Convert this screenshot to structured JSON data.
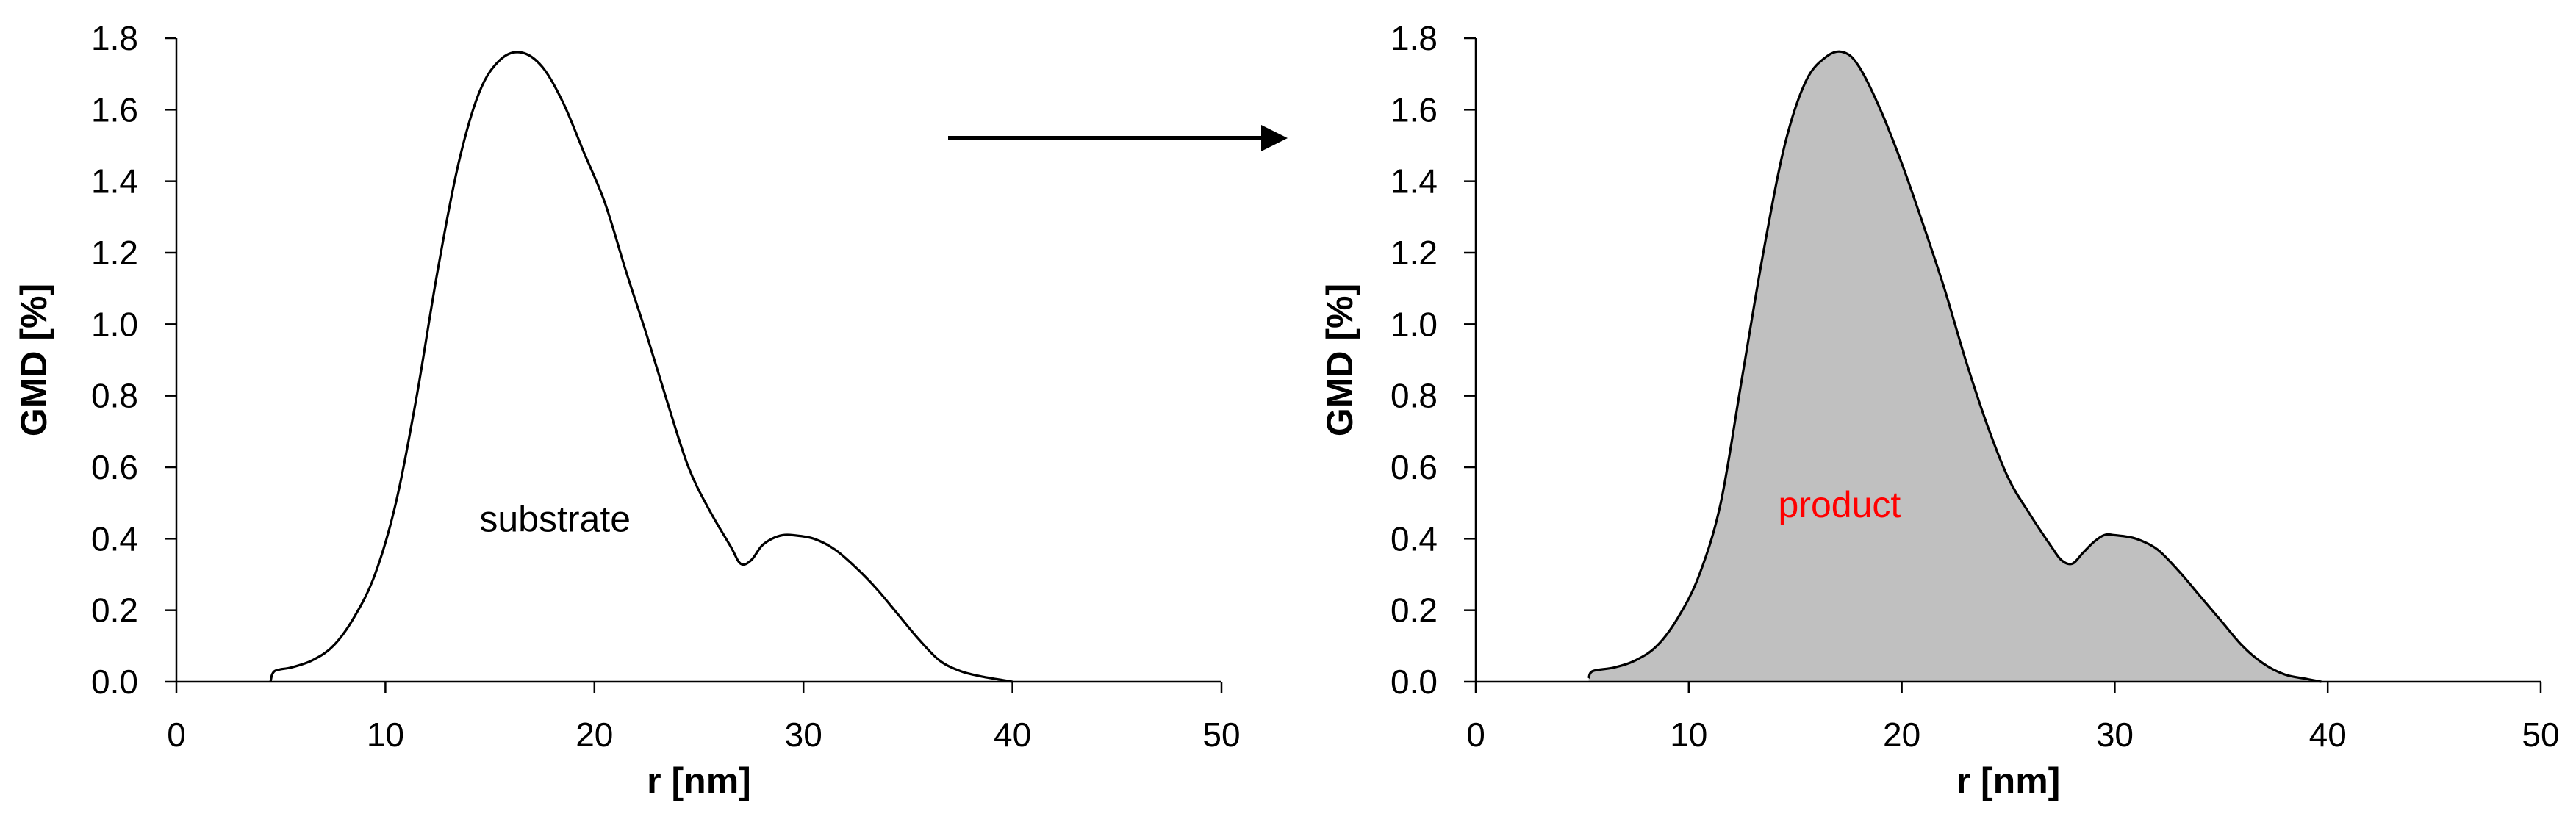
{
  "chart_data": [
    {
      "type": "line",
      "filled": false,
      "xlabel": "r [nm]",
      "ylabel": "GMD [%]",
      "xlim": [
        0,
        50
      ],
      "ylim": [
        0,
        1.8
      ],
      "xticks": [
        0,
        10,
        20,
        30,
        40,
        50
      ],
      "yticks": [
        0.0,
        0.2,
        0.4,
        0.6,
        0.8,
        1.0,
        1.2,
        1.4,
        1.6,
        1.8
      ],
      "annotation": {
        "text": "substrate",
        "color": "#000000",
        "x": 14.5,
        "y": 0.42
      },
      "series": [
        {
          "line_color": "#000000",
          "x": [
            4.5,
            4.7,
            5.5,
            6.5,
            7.5,
            8.5,
            9.5,
            10.5,
            11.5,
            12.5,
            13.5,
            14.5,
            15.5,
            16.5,
            17.5,
            18.5,
            19.5,
            20.5,
            21.5,
            22.5,
            23.5,
            24.5,
            25.5,
            26.5,
            27.0,
            27.5,
            28.0,
            28.5,
            29.0,
            29.5,
            30.5,
            31.5,
            32.5,
            33.5,
            34.5,
            35.5,
            36.5,
            37.5,
            38.5,
            39.5,
            40.0
          ],
          "y": [
            0.0,
            0.03,
            0.04,
            0.06,
            0.1,
            0.18,
            0.3,
            0.5,
            0.8,
            1.15,
            1.45,
            1.65,
            1.74,
            1.76,
            1.72,
            1.62,
            1.48,
            1.34,
            1.15,
            0.97,
            0.78,
            0.6,
            0.48,
            0.38,
            0.33,
            0.34,
            0.38,
            0.4,
            0.41,
            0.41,
            0.4,
            0.37,
            0.32,
            0.26,
            0.19,
            0.12,
            0.06,
            0.03,
            0.015,
            0.005,
            0.0
          ]
        }
      ]
    },
    {
      "type": "area",
      "filled": true,
      "fill_color": "#c0c0c0",
      "xlabel": "r [nm]",
      "ylabel": "GMD [%]",
      "xlim": [
        0,
        50
      ],
      "ylim": [
        0,
        1.8
      ],
      "xticks": [
        0,
        10,
        20,
        30,
        40,
        50
      ],
      "yticks": [
        0.0,
        0.2,
        0.4,
        0.6,
        0.8,
        1.0,
        1.2,
        1.4,
        1.6,
        1.8
      ],
      "annotation": {
        "text": "product",
        "color": "#ff0000",
        "x": 14.2,
        "y": 0.46
      },
      "series": [
        {
          "line_color": "#000000",
          "x": [
            5.3,
            5.5,
            6.5,
            7.5,
            8.5,
            9.5,
            10.5,
            11.5,
            12.5,
            13.5,
            14.5,
            15.5,
            16.5,
            17.3,
            18.0,
            19.0,
            20.0,
            21.0,
            22.0,
            23.0,
            24.0,
            25.0,
            26.0,
            27.0,
            27.5,
            28.0,
            28.5,
            29.0,
            29.5,
            30.0,
            31.0,
            32.0,
            33.0,
            34.0,
            35.0,
            36.0,
            37.0,
            38.0,
            39.0,
            39.7
          ],
          "y": [
            0.01,
            0.03,
            0.04,
            0.06,
            0.1,
            0.18,
            0.3,
            0.5,
            0.85,
            1.2,
            1.5,
            1.68,
            1.75,
            1.76,
            1.72,
            1.6,
            1.45,
            1.28,
            1.1,
            0.9,
            0.72,
            0.57,
            0.47,
            0.38,
            0.34,
            0.33,
            0.36,
            0.39,
            0.41,
            0.41,
            0.4,
            0.37,
            0.31,
            0.24,
            0.17,
            0.1,
            0.05,
            0.02,
            0.008,
            0.0
          ]
        }
      ]
    }
  ],
  "arrow": {
    "color": "#000000"
  }
}
